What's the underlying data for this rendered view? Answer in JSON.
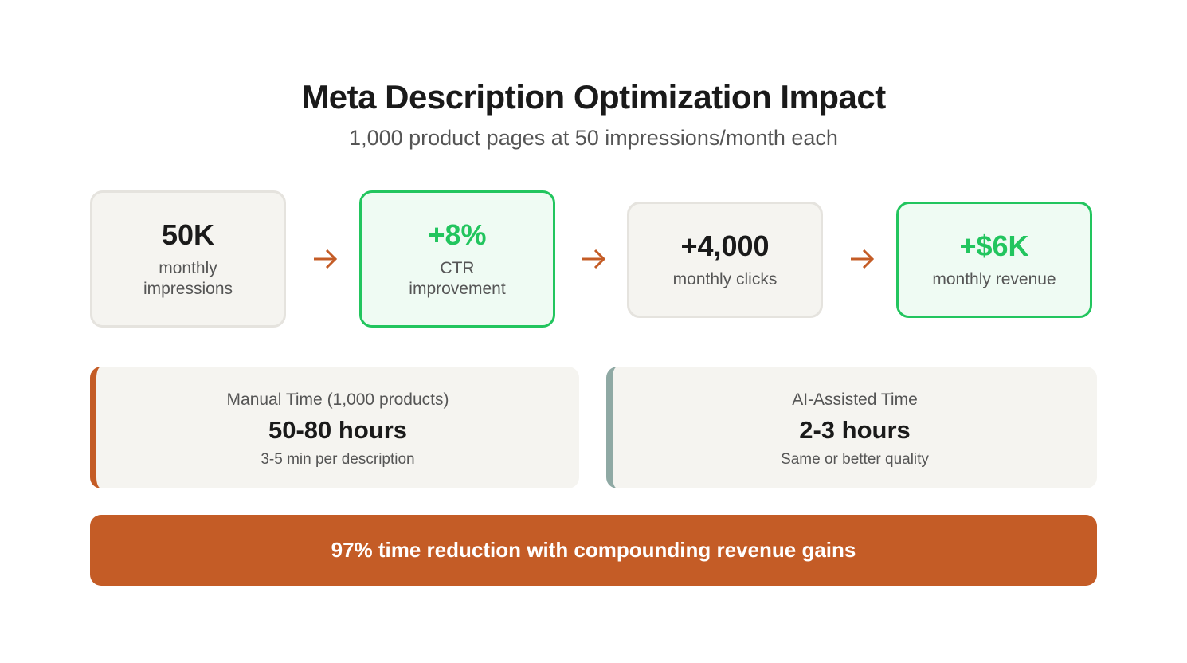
{
  "title": "Meta Description Optimization Impact",
  "subtitle": "1,000 product pages at 50 impressions/month each",
  "flow": [
    {
      "value": "50K",
      "label": "monthly impressions",
      "highlight": false
    },
    {
      "value": "+8%",
      "label": "CTR improvement",
      "highlight": true
    },
    {
      "value": "+4,000",
      "label": "monthly clicks",
      "highlight": false
    },
    {
      "value": "+$6K",
      "label": "monthly revenue",
      "highlight": true
    }
  ],
  "arrow_icon": "arrow-right-icon",
  "comparison": {
    "manual": {
      "heading": "Manual Time (1,000 products)",
      "value": "50-80 hours",
      "note": "3-5 min per description",
      "accent": "#c45c26"
    },
    "ai": {
      "heading": "AI-Assisted Time",
      "value": "2-3 hours",
      "note": "Same or better quality",
      "accent": "#8fa9a4"
    }
  },
  "banner": "97% time reduction with compounding revenue gains",
  "colors": {
    "accent": "#c45c26",
    "green": "#22c55e",
    "card_bg": "#f5f4f0",
    "green_bg": "#effbf3"
  }
}
